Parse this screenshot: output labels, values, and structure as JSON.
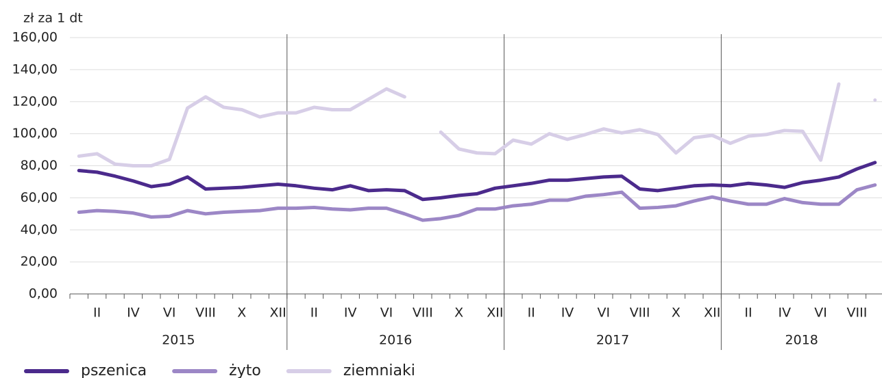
{
  "chart_data": {
    "type": "line",
    "y_axis_label": "zł za 1 dt",
    "categories": [
      null,
      "II",
      null,
      "IV",
      null,
      "VI",
      null,
      "VIII",
      null,
      "X",
      null,
      "XII",
      null,
      "II",
      null,
      "IV",
      null,
      "VI",
      null,
      "VIII",
      null,
      "X",
      null,
      "XII",
      null,
      "II",
      null,
      "IV",
      null,
      "VI",
      null,
      "VIII",
      null,
      "X",
      null,
      "XII",
      null,
      "II",
      null,
      "IV",
      null,
      "VI",
      null,
      "VIII",
      null
    ],
    "years": [
      {
        "label": "2015",
        "months": 12
      },
      {
        "label": "2016",
        "months": 12
      },
      {
        "label": "2017",
        "months": 12
      },
      {
        "label": "2018",
        "months": 9
      }
    ],
    "series": [
      {
        "name": "pszenica",
        "color": "#4b2a8c",
        "values": [
          77,
          76,
          73.5,
          70.5,
          67,
          68.5,
          73,
          65.5,
          66,
          66.5,
          67.5,
          68.5,
          67.5,
          66,
          65,
          67.5,
          64.5,
          65,
          64.5,
          59,
          60,
          61.5,
          62.5,
          66,
          67.5,
          69,
          71,
          71,
          72,
          73,
          73.5,
          65.5,
          64.5,
          66,
          67.5,
          68,
          67.5,
          69,
          68,
          66.5,
          69.5,
          71,
          73,
          78,
          82
        ]
      },
      {
        "name": "żyto",
        "color": "#9c87c6",
        "values": [
          51,
          52,
          51.5,
          50.5,
          48,
          48.5,
          52,
          50,
          51,
          51.5,
          52,
          53.5,
          53.5,
          54,
          53,
          52.5,
          53.5,
          53.5,
          50,
          46,
          47,
          49,
          53,
          53,
          55,
          56,
          58.5,
          58.5,
          61,
          62,
          63.5,
          53.5,
          54,
          55,
          58,
          60.5,
          58,
          56,
          56,
          59.5,
          57,
          56,
          56,
          65,
          68
        ]
      },
      {
        "name": "ziemniaki",
        "color": "#d7cee7",
        "values": [
          86,
          87.5,
          81,
          80,
          80,
          84,
          116,
          123,
          116.5,
          115,
          110.5,
          113,
          113,
          116.5,
          115,
          115,
          121.5,
          128,
          123,
          null,
          101,
          90.5,
          88,
          87.5,
          96,
          93.5,
          100,
          96.5,
          99.5,
          103,
          100.5,
          102.5,
          99.5,
          88,
          97.5,
          99,
          94,
          98.5,
          99.5,
          102,
          101.5,
          83.5,
          131,
          null,
          121
        ]
      }
    ],
    "ylim": [
      0,
      160
    ],
    "yticks": [
      {
        "value": 0,
        "label": "0,00"
      },
      {
        "value": 20,
        "label": "20,00"
      },
      {
        "value": 40,
        "label": "40,00"
      },
      {
        "value": 60,
        "label": "60,00"
      },
      {
        "value": 80,
        "label": "80,00"
      },
      {
        "value": 100,
        "label": "100,00"
      },
      {
        "value": 120,
        "label": "120,00"
      },
      {
        "value": 140,
        "label": "140,00"
      },
      {
        "value": 160,
        "label": "160,00"
      }
    ],
    "grid": true,
    "legend": "bottom-left"
  }
}
